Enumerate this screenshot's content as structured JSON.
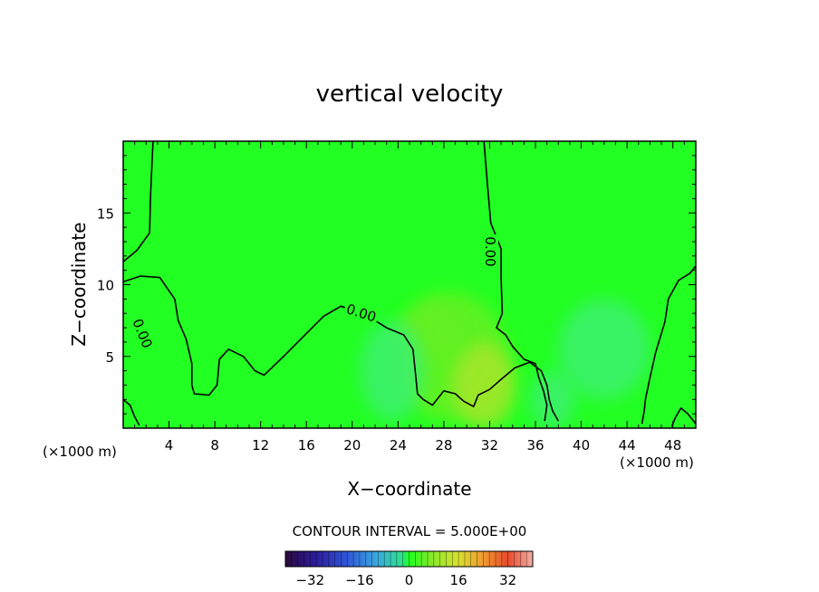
{
  "chart_data": {
    "type": "heatmap",
    "title": "vertical velocity",
    "xlabel": "X−coordinate",
    "ylabel": "Z−coordinate",
    "x_unit_left": "(×1000 m)",
    "x_unit_right": "(×1000 m)",
    "xlim": [
      0,
      50
    ],
    "ylim": [
      0,
      20
    ],
    "x_ticks": [
      4,
      8,
      12,
      16,
      20,
      24,
      28,
      32,
      36,
      40,
      44,
      48
    ],
    "x_tick_labels": [
      "4",
      "8",
      "12",
      "16",
      "20",
      "24",
      "28",
      "32",
      "36",
      "40",
      "44",
      "48"
    ],
    "y_ticks": [
      5,
      10,
      15
    ],
    "y_tick_labels": [
      "5",
      "10",
      "15"
    ],
    "contour_interval_text": "CONTOUR INTERVAL = 5.000E+00",
    "contour_labels": [
      "0.00",
      "0.00",
      "0.00"
    ],
    "colorbar": {
      "range": [
        -40,
        40
      ],
      "ticks": [
        -32,
        -16,
        0,
        16,
        32
      ],
      "tick_labels": [
        "−32",
        "−16",
        "0",
        "16",
        "32"
      ]
    },
    "zero_contours": [
      [
        [
          0,
          11.6
        ],
        [
          1.2,
          12.4
        ],
        [
          2.3,
          13.6
        ],
        [
          2.4,
          16.4
        ],
        [
          2.6,
          20
        ]
      ],
      [
        [
          0,
          10.2
        ],
        [
          1.5,
          10.6
        ],
        [
          3.2,
          10.5
        ],
        [
          4.5,
          9.0
        ],
        [
          4.8,
          7.5
        ],
        [
          5.5,
          6.2
        ],
        [
          6.0,
          4.5
        ],
        [
          6.0,
          3.0
        ],
        [
          6.2,
          2.4
        ],
        [
          7.5,
          2.3
        ],
        [
          8.2,
          3.0
        ],
        [
          8.4,
          4.8
        ],
        [
          9.2,
          5.5
        ],
        [
          10.5,
          5.0
        ],
        [
          11.5,
          4.0
        ],
        [
          12.3,
          3.7
        ],
        [
          14,
          5.0
        ],
        [
          16,
          6.6
        ],
        [
          17.5,
          7.8
        ],
        [
          19,
          8.5
        ],
        [
          21,
          8.0
        ],
        [
          23,
          7.0
        ],
        [
          24.5,
          6.5
        ],
        [
          25.3,
          5.5
        ],
        [
          25.5,
          4.0
        ],
        [
          25.7,
          2.4
        ],
        [
          26.2,
          2.0
        ],
        [
          27,
          1.6
        ],
        [
          28,
          2.6
        ],
        [
          29.0,
          2.4
        ],
        [
          29.7,
          1.9
        ],
        [
          30.6,
          1.5
        ],
        [
          31,
          2.3
        ],
        [
          32,
          2.7
        ],
        [
          33,
          3.4
        ],
        [
          34.2,
          4.2
        ],
        [
          35.5,
          4.6
        ],
        [
          36.5,
          4.0
        ],
        [
          37,
          3.0
        ],
        [
          37.2,
          2.0
        ],
        [
          37.5,
          1.2
        ],
        [
          38,
          0.5
        ]
      ],
      [
        [
          31.5,
          20
        ],
        [
          31.8,
          17.0
        ],
        [
          32.1,
          14.3
        ],
        [
          33.0,
          12.5
        ],
        [
          33.0,
          10.5
        ],
        [
          33.1,
          8.0
        ],
        [
          32.6,
          7.0
        ],
        [
          33.4,
          6.5
        ],
        [
          34.0,
          5.7
        ],
        [
          35.0,
          4.8
        ],
        [
          36.0,
          4.5
        ],
        [
          36.3,
          3.5
        ],
        [
          36.7,
          2.6
        ],
        [
          37.0,
          1.6
        ],
        [
          36.8,
          0.5
        ]
      ],
      [
        [
          50,
          11.3
        ],
        [
          49.5,
          10.8
        ],
        [
          48.5,
          10.3
        ],
        [
          47.6,
          9.0
        ],
        [
          47.3,
          7.4
        ],
        [
          46.5,
          5.3
        ],
        [
          46.0,
          3.5
        ],
        [
          45.6,
          2.0
        ],
        [
          45.5,
          1.2
        ],
        [
          45.3,
          0.3
        ]
      ],
      [
        [
          50,
          0.3
        ],
        [
          49.3,
          1.0
        ],
        [
          48.7,
          1.4
        ],
        [
          48.2,
          0.7
        ],
        [
          47.9,
          0.1
        ]
      ],
      [
        [
          0,
          2.0
        ],
        [
          0.6,
          1.6
        ],
        [
          1.0,
          0.8
        ],
        [
          1.4,
          0.2
        ]
      ]
    ],
    "field_blobs": [
      {
        "x": 28.5,
        "z": 5.0,
        "rx": 5.0,
        "rz": 4.5,
        "value": 6
      },
      {
        "x": 31.5,
        "z": 3.0,
        "rx": 2.8,
        "rz": 3.0,
        "value": 9
      },
      {
        "x": 27.0,
        "z": 6.5,
        "rx": 2.8,
        "rz": 2.0,
        "value": 4
      },
      {
        "x": 23.5,
        "z": 4.0,
        "rx": 2.8,
        "rz": 3.5,
        "value": -3
      },
      {
        "x": 42.0,
        "z": 5.5,
        "rx": 4.0,
        "rz": 3.5,
        "value": -3
      },
      {
        "x": 37.5,
        "z": 2.0,
        "rx": 2.0,
        "rz": 2.0,
        "value": -2
      }
    ]
  }
}
